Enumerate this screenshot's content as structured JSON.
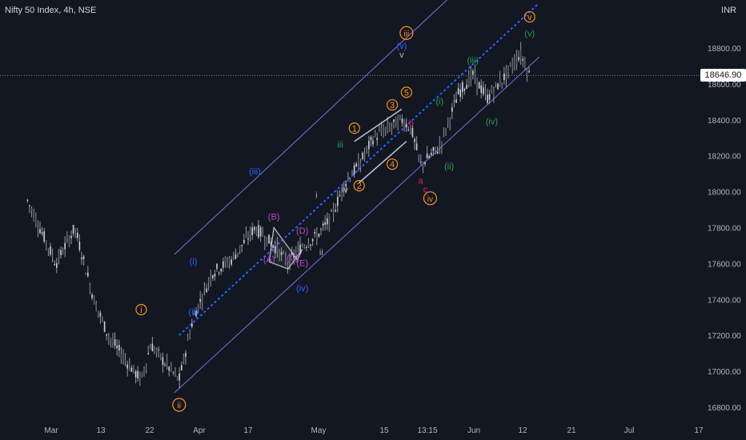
{
  "header": {
    "symbol": "Nifty 50 Index, 4h, NSE",
    "currency": "INR"
  },
  "last_price": "18646.90",
  "chart_data": {
    "type": "candlestick",
    "title": "Nifty 50 Index, 4h, NSE",
    "ylim": [
      16700,
      19050
    ],
    "y_ticks": [
      16800,
      17000,
      17200,
      17400,
      17600,
      17800,
      18000,
      18200,
      18400,
      18600,
      18800
    ],
    "y_tick_labels": [
      "16800.00",
      "17000.00",
      "17200.00",
      "17400.00",
      "17600.00",
      "17800.00",
      "18000.00",
      "18200.00",
      "18400.00",
      "18600.00",
      "18800.00"
    ],
    "x_tick_labels": [
      "Mar",
      "13",
      "22",
      "Apr",
      "17",
      "May",
      "15",
      "13:15",
      "Jun",
      "12",
      "21",
      "Jul",
      "17"
    ],
    "price_line": 18646.9,
    "path_points": [
      [
        "02-24",
        17950
      ],
      [
        "03-02",
        17600
      ],
      [
        "03-06",
        17800
      ],
      [
        "03-10",
        17400
      ],
      [
        "03-13",
        17200
      ],
      [
        "03-17",
        17050
      ],
      [
        "03-20",
        16950
      ],
      [
        "03-22",
        17150
      ],
      [
        "03-24",
        17080
      ],
      [
        "03-28",
        16950
      ],
      [
        "03-31",
        17300
      ],
      [
        "04-04",
        17550
      ],
      [
        "04-08",
        17620
      ],
      [
        "04-13",
        17800
      ],
      [
        "04-17",
        17700
      ],
      [
        "04-20",
        17600
      ],
      [
        "04-23",
        17700
      ],
      [
        "04-26",
        17750
      ],
      [
        "04-29",
        17850
      ],
      [
        "05-02",
        18050
      ],
      [
        "05-05",
        18150
      ],
      [
        "05-08",
        18300
      ],
      [
        "05-11",
        18350
      ],
      [
        "05-14",
        18400
      ],
      [
        "05-16",
        18350
      ],
      [
        "05-18",
        18150
      ],
      [
        "05-22",
        18250
      ],
      [
        "05-24",
        18400
      ],
      [
        "05-26",
        18550
      ],
      [
        "05-29",
        18650
      ],
      [
        "06-01",
        18520
      ],
      [
        "06-05",
        18650
      ],
      [
        "06-08",
        18770
      ],
      [
        "06-10",
        18650
      ]
    ],
    "channel": {
      "upper": [
        [
          "03-27",
          17650
        ],
        [
          "06-04",
          19350
        ]
      ],
      "lower": [
        [
          "03-27",
          16880
        ],
        [
          "06-12",
          18750
        ]
      ],
      "mid": [
        [
          "03-28",
          17200
        ],
        [
          "06-12",
          19050
        ]
      ]
    },
    "wave_labels": [
      {
        "text": "i",
        "style": "circle",
        "color": "#f7931e",
        "date": "03-20",
        "price": 17330
      },
      {
        "text": "ii",
        "style": "circle",
        "color": "#f7931e",
        "date": "03-28",
        "price": 16800
      },
      {
        "text": "iii",
        "style": "circle",
        "color": "#f7931e",
        "date": "05-15",
        "price": 18870
      },
      {
        "text": "iv",
        "style": "circle",
        "color": "#f7931e",
        "date": "05-20",
        "price": 17950
      },
      {
        "text": "v",
        "style": "circle",
        "color": "#f7931e",
        "date": "06-10",
        "price": 18960
      },
      {
        "text": "(i)",
        "style": "plain",
        "color": "#2962ff",
        "date": "03-31",
        "price": 17600
      },
      {
        "text": "(ii)",
        "style": "plain",
        "color": "#2962ff",
        "date": "03-31",
        "price": 17320
      },
      {
        "text": "(iii)",
        "style": "plain",
        "color": "#2962ff",
        "date": "04-13",
        "price": 18100
      },
      {
        "text": "(iv)",
        "style": "plain",
        "color": "#2962ff",
        "date": "04-23",
        "price": 17450
      },
      {
        "text": "(v)",
        "style": "plain",
        "color": "#2962ff",
        "date": "05-14",
        "price": 18800
      },
      {
        "text": "(A)",
        "style": "plain",
        "color": "#b54cc9",
        "date": "04-16",
        "price": 17610
      },
      {
        "text": "(B)",
        "style": "plain",
        "color": "#b54cc9",
        "date": "04-17",
        "price": 17850
      },
      {
        "text": "(C)",
        "style": "plain",
        "color": "#b54cc9",
        "date": "04-21",
        "price": 17620
      },
      {
        "text": "(D)",
        "style": "plain",
        "color": "#b54cc9",
        "date": "04-23",
        "price": 17770
      },
      {
        "text": "(E)",
        "style": "plain",
        "color": "#b54cc9",
        "date": "04-23",
        "price": 17590
      },
      {
        "text": "ii",
        "style": "plain",
        "color": "#b2b5be",
        "date": "04-27",
        "price": 17650
      },
      {
        "text": "i",
        "style": "plain",
        "color": "#b2b5be",
        "date": "04-26",
        "price": 17970
      },
      {
        "text": "iii",
        "style": "plain",
        "color": "#2e9e4e",
        "date": "05-01",
        "price": 18250
      },
      {
        "text": "iv",
        "style": "plain",
        "color": "#b2b5be",
        "date": "05-02",
        "price": 18000
      },
      {
        "text": "v",
        "style": "plain",
        "color": "#b2b5be",
        "date": "05-14",
        "price": 18750
      },
      {
        "text": "1",
        "style": "circle",
        "color": "#f7931e",
        "date": "05-04",
        "price": 18340
      },
      {
        "text": "2",
        "style": "circle",
        "color": "#f7931e",
        "date": "05-05",
        "price": 18020
      },
      {
        "text": "3",
        "style": "circle",
        "color": "#f7931e",
        "date": "05-12",
        "price": 18470
      },
      {
        "text": "4",
        "style": "circle",
        "color": "#f7931e",
        "date": "05-12",
        "price": 18140
      },
      {
        "text": "5",
        "style": "circle",
        "color": "#f7931e",
        "date": "05-15",
        "price": 18540
      },
      {
        "text": "b",
        "style": "plain",
        "color": "#e91e63",
        "date": "05-16",
        "price": 18370
      },
      {
        "text": "a",
        "style": "plain",
        "color": "#e91e63",
        "date": "05-18",
        "price": 18050
      },
      {
        "text": "c",
        "style": "plain",
        "color": "#e91e63",
        "date": "05-19",
        "price": 18000
      },
      {
        "text": "(i)",
        "style": "plain",
        "color": "#2e9e4e",
        "date": "05-22",
        "price": 18490
      },
      {
        "text": "(ii)",
        "style": "plain",
        "color": "#2e9e4e",
        "date": "05-24",
        "price": 18130
      },
      {
        "text": "(iii)",
        "style": "plain",
        "color": "#2e9e4e",
        "date": "05-29",
        "price": 18720
      },
      {
        "text": "(iv)",
        "style": "plain",
        "color": "#2e9e4e",
        "date": "06-02",
        "price": 18380
      },
      {
        "text": "(v)",
        "style": "plain",
        "color": "#2e9e4e",
        "date": "06-10",
        "price": 18870
      }
    ]
  }
}
